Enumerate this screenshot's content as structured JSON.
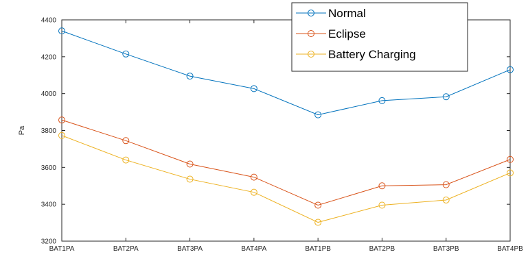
{
  "chart_data": {
    "type": "line",
    "categories": [
      "BAT1PA",
      "BAT2PA",
      "BAT3PA",
      "BAT4PA",
      "BAT1PB",
      "BAT2PB",
      "BAT3PB",
      "BAT4PB"
    ],
    "ylim": [
      3200,
      4400
    ],
    "yticks": [
      3200,
      3400,
      3600,
      3800,
      4000,
      4200,
      4400
    ],
    "xlabel": "",
    "ylabel": "Pa",
    "grid": false,
    "legend_position": "top-right",
    "series": [
      {
        "name": "Normal",
        "color": "#0072bd",
        "values": [
          4340,
          4215,
          4095,
          4027,
          3885,
          3962,
          3983,
          4130
        ]
      },
      {
        "name": "Eclipse",
        "color": "#d95319",
        "values": [
          3857,
          3745,
          3618,
          3547,
          3395,
          3500,
          3506,
          3643
        ]
      },
      {
        "name": "Battery Charging",
        "color": "#edb120",
        "values": [
          3773,
          3640,
          3536,
          3465,
          3302,
          3395,
          3423,
          3570
        ]
      }
    ]
  },
  "colors": {
    "axis": "#262626",
    "background": "#ffffff"
  }
}
